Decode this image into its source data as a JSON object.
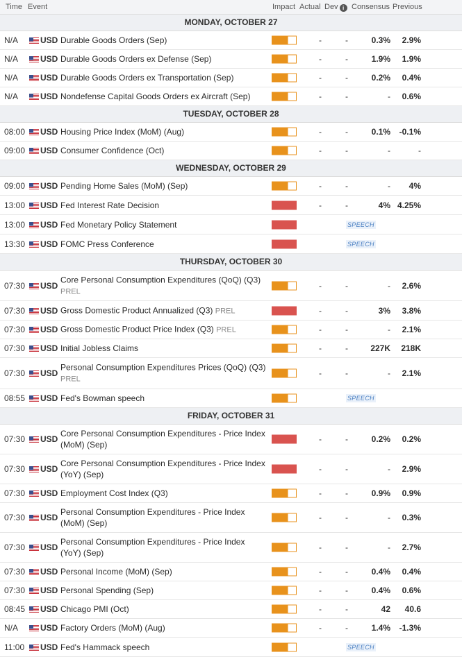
{
  "header": {
    "time": "Time",
    "event": "Event",
    "impact": "Impact",
    "actual": "Actual",
    "dev": "Dev",
    "consensus": "Consensus",
    "previous": "Previous"
  },
  "colors": {
    "medium_impact": "#e8921c",
    "high_impact": "#d9534f",
    "speech_tag": "#4a7fc1"
  },
  "days": [
    {
      "label": "MONDAY, OCTOBER 27",
      "rows": [
        {
          "time": "N/A",
          "cur": "USD",
          "event": "Durable Goods Orders (Sep)",
          "prel": "",
          "impact": "medium",
          "actual": "-",
          "dev": "-",
          "cons": "0.3%",
          "prev": "2.9%",
          "h": 27
        },
        {
          "time": "N/A",
          "cur": "USD",
          "event": "Durable Goods Orders ex Defense (Sep)",
          "prel": "",
          "impact": "medium",
          "actual": "-",
          "dev": "-",
          "cons": "1.9%",
          "prev": "1.9%",
          "h": 27
        },
        {
          "time": "N/A",
          "cur": "USD",
          "event": "Durable Goods Orders ex Transportation (Sep)",
          "prel": "",
          "impact": "medium",
          "actual": "-",
          "dev": "-",
          "cons": "0.2%",
          "prev": "0.4%",
          "h": 27
        },
        {
          "time": "N/A",
          "cur": "USD",
          "event": "Nondefense Capital Goods Orders ex Aircraft (Sep)",
          "prel": "",
          "impact": "medium",
          "actual": "-",
          "dev": "-",
          "cons": "-",
          "prev": "0.6%",
          "h": 27
        }
      ]
    },
    {
      "label": "TUESDAY, OCTOBER 28",
      "rows": [
        {
          "time": "08:00",
          "cur": "USD",
          "event": "Housing Price Index (MoM) (Aug)",
          "prel": "",
          "impact": "medium",
          "actual": "-",
          "dev": "-",
          "cons": "0.1%",
          "prev": "-0.1%",
          "h": 27
        },
        {
          "time": "09:00",
          "cur": "USD",
          "event": "Consumer Confidence (Oct)",
          "prel": "",
          "impact": "medium",
          "actual": "-",
          "dev": "-",
          "cons": "-",
          "prev": "-",
          "h": 27
        }
      ]
    },
    {
      "label": "WEDNESDAY, OCTOBER 29",
      "rows": [
        {
          "time": "09:00",
          "cur": "USD",
          "event": "Pending Home Sales (MoM) (Sep)",
          "prel": "",
          "impact": "medium",
          "actual": "-",
          "dev": "-",
          "cons": "-",
          "prev": "4%",
          "h": 27
        },
        {
          "time": "13:00",
          "cur": "USD",
          "event": "Fed Interest Rate Decision",
          "prel": "",
          "impact": "high",
          "actual": "-",
          "dev": "-",
          "cons": "4%",
          "prev": "4.25%",
          "h": 28
        },
        {
          "time": "13:00",
          "cur": "USD",
          "event": "Fed Monetary Policy Statement",
          "prel": "",
          "impact": "high",
          "speech": "SPEECH",
          "h": 28
        },
        {
          "time": "13:30",
          "cur": "USD",
          "event": "FOMC Press Conference",
          "prel": "",
          "impact": "high",
          "speech": "SPEECH",
          "h": 28
        }
      ]
    },
    {
      "label": "THURSDAY, OCTOBER 30",
      "rows": [
        {
          "time": "07:30",
          "cur": "USD",
          "event": "Core Personal Consumption Expenditures (QoQ) (Q3)",
          "prel": "PREL",
          "prel_newline": true,
          "impact": "medium",
          "actual": "-",
          "dev": "-",
          "cons": "-",
          "prev": "2.6%",
          "h": 44
        },
        {
          "time": "07:30",
          "cur": "USD",
          "event": "Gross Domestic Product Annualized (Q3)",
          "prel": "PREL",
          "impact": "high",
          "actual": "-",
          "dev": "-",
          "cons": "3%",
          "prev": "3.8%",
          "h": 28
        },
        {
          "time": "07:30",
          "cur": "USD",
          "event": "Gross Domestic Product Price Index (Q3)",
          "prel": "PREL",
          "impact": "medium",
          "actual": "-",
          "dev": "-",
          "cons": "-",
          "prev": "2.1%",
          "h": 27
        },
        {
          "time": "07:30",
          "cur": "USD",
          "event": "Initial Jobless Claims",
          "prel": "",
          "impact": "medium",
          "actual": "-",
          "dev": "-",
          "cons": "227K",
          "prev": "218K",
          "h": 27
        },
        {
          "time": "07:30",
          "cur": "USD",
          "event": "Personal Consumption Expenditures Prices (QoQ) (Q3)",
          "prel": "PREL",
          "prel_newline": true,
          "impact": "medium",
          "actual": "-",
          "dev": "-",
          "cons": "-",
          "prev": "2.1%",
          "h": 45
        },
        {
          "time": "08:55",
          "cur": "USD",
          "event": "Fed's Bowman speech",
          "prel": "",
          "impact": "medium",
          "speech": "SPEECH",
          "h": 27
        }
      ]
    },
    {
      "label": "FRIDAY, OCTOBER 31",
      "rows": [
        {
          "time": "07:30",
          "cur": "USD",
          "event": "Core Personal Consumption Expenditures - Price Index (MoM) (Sep)",
          "prel": "",
          "impact": "high",
          "actual": "-",
          "dev": "-",
          "cons": "0.2%",
          "prev": "0.2%",
          "h": 43
        },
        {
          "time": "07:30",
          "cur": "USD",
          "event": "Core Personal Consumption Expenditures - Price Index (YoY) (Sep)",
          "prel": "",
          "impact": "high",
          "actual": "-",
          "dev": "-",
          "cons": "-",
          "prev": "2.9%",
          "h": 43
        },
        {
          "time": "07:30",
          "cur": "USD",
          "event": "Employment Cost Index (Q3)",
          "prel": "",
          "impact": "medium",
          "actual": "-",
          "dev": "-",
          "cons": "0.9%",
          "prev": "0.9%",
          "h": 27
        },
        {
          "time": "07:30",
          "cur": "USD",
          "event": "Personal Consumption Expenditures - Price Index (MoM) (Sep)",
          "prel": "",
          "impact": "medium",
          "actual": "-",
          "dev": "-",
          "cons": "-",
          "prev": "0.3%",
          "h": 43
        },
        {
          "time": "07:30",
          "cur": "USD",
          "event": "Personal Consumption Expenditures - Price Index (YoY) (Sep)",
          "prel": "",
          "impact": "medium",
          "actual": "-",
          "dev": "-",
          "cons": "-",
          "prev": "2.7%",
          "h": 43
        },
        {
          "time": "07:30",
          "cur": "USD",
          "event": "Personal Income (MoM) (Sep)",
          "prel": "",
          "impact": "medium",
          "actual": "-",
          "dev": "-",
          "cons": "0.4%",
          "prev": "0.4%",
          "h": 27
        },
        {
          "time": "07:30",
          "cur": "USD",
          "event": "Personal Spending (Sep)",
          "prel": "",
          "impact": "medium",
          "actual": "-",
          "dev": "-",
          "cons": "0.4%",
          "prev": "0.6%",
          "h": 27
        },
        {
          "time": "08:45",
          "cur": "USD",
          "event": "Chicago PMI (Oct)",
          "prel": "",
          "impact": "medium",
          "actual": "-",
          "dev": "-",
          "cons": "42",
          "prev": "40.6",
          "h": 27
        },
        {
          "time": "N/A",
          "cur": "USD",
          "event": "Factory Orders (MoM) (Aug)",
          "prel": "",
          "impact": "medium",
          "actual": "-",
          "dev": "-",
          "cons": "1.4%",
          "prev": "-1.3%",
          "h": 27
        },
        {
          "time": "11:00",
          "cur": "USD",
          "event": "Fed's Hammack speech",
          "prel": "",
          "impact": "medium",
          "speech": "SPEECH",
          "h": 28
        }
      ]
    }
  ]
}
